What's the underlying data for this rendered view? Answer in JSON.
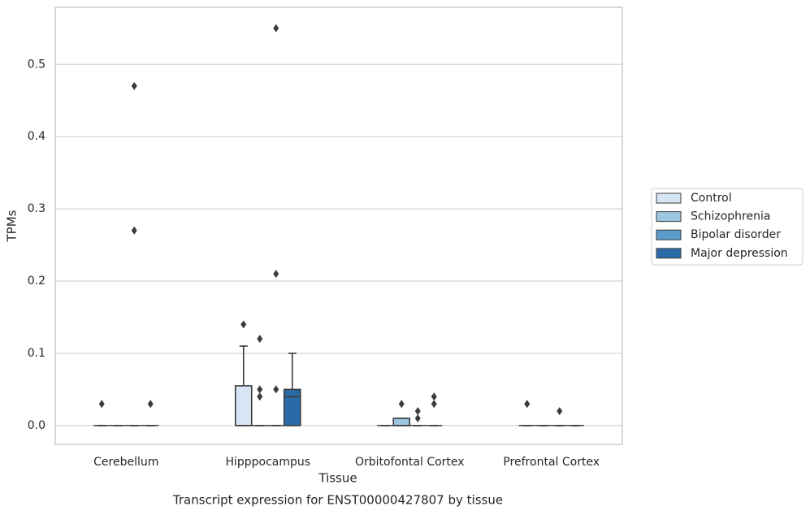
{
  "chart_data": {
    "type": "box",
    "title": "Transcript expression for ENST00000427807 by tissue",
    "xlabel": "Tissue",
    "ylabel": "TPMs",
    "categories": [
      "Cerebellum",
      "Hipppocampus",
      "Orbitofontal Cortex",
      "Prefrontal Cortex"
    ],
    "ylim": [
      -0.026,
      0.579
    ],
    "yticks": [
      {
        "value": 0,
        "label": "0.0"
      },
      0.1,
      0.2,
      0.3,
      0.4,
      0.5
    ],
    "grid": true,
    "legend": "right",
    "series": [
      {
        "name": "Control",
        "color": "#d6e6f4",
        "whislo": [
          0,
          0,
          0,
          0
        ],
        "q1": [
          0,
          0,
          0,
          0
        ],
        "median": [
          0,
          0,
          0,
          0
        ],
        "q3": [
          0,
          0.055,
          0,
          0
        ],
        "whishi": [
          0,
          0.11,
          0,
          0
        ],
        "fliers": [
          [
            0.03
          ],
          [
            0.14
          ],
          [],
          [
            0.03
          ]
        ]
      },
      {
        "name": "Schizophrenia",
        "color": "#9dc6e0",
        "whislo": [
          0,
          0,
          0,
          0
        ],
        "q1": [
          0,
          0,
          0,
          0
        ],
        "median": [
          0,
          0,
          0,
          0
        ],
        "q3": [
          0,
          0,
          0.01,
          0
        ],
        "whishi": [
          0,
          0,
          0.01,
          0
        ],
        "fliers": [
          [],
          [
            0.12,
            0.05,
            0.04
          ],
          [
            0.03
          ],
          []
        ]
      },
      {
        "name": "Bipolar disorder",
        "color": "#5b9bc9",
        "whislo": [
          0,
          0,
          0,
          0
        ],
        "q1": [
          0,
          0,
          0,
          0
        ],
        "median": [
          0,
          0,
          0,
          0
        ],
        "q3": [
          0,
          0,
          0,
          0
        ],
        "whishi": [
          0,
          0,
          0,
          0
        ],
        "fliers": [
          [
            0.47,
            0.27
          ],
          [
            0.55,
            0.21,
            0.05
          ],
          [
            0.02,
            0.01
          ],
          [
            0.02
          ]
        ]
      },
      {
        "name": "Major depression",
        "color": "#2b6aa8",
        "whislo": [
          0,
          0,
          0,
          0
        ],
        "q1": [
          0,
          0,
          0,
          0
        ],
        "median": [
          0,
          0.04,
          0,
          0
        ],
        "q3": [
          0,
          0.05,
          0,
          0
        ],
        "whishi": [
          0,
          0.1,
          0,
          0
        ],
        "fliers": [
          [
            0.03
          ],
          [],
          [
            0.04,
            0.03
          ],
          []
        ]
      }
    ]
  }
}
